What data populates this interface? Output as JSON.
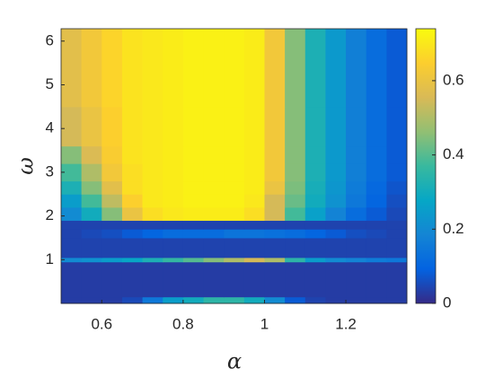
{
  "chart_data": {
    "type": "heatmap",
    "xlabel": "α",
    "ylabel": "ω",
    "x_edges": [
      0.5,
      0.55,
      0.6,
      0.65,
      0.7,
      0.75,
      0.8,
      0.85,
      0.9,
      0.95,
      1.0,
      1.05,
      1.1,
      1.15,
      1.2,
      1.25,
      1.3,
      1.35
    ],
    "y_edges": [
      0,
      0.15,
      0.95,
      1.05,
      1.5,
      1.7,
      1.9,
      2.2,
      2.5,
      2.8,
      3.2,
      3.6,
      4.5,
      6.283
    ],
    "z": [
      [
        0.03,
        0.03,
        0.03,
        0.05,
        0.15,
        0.25,
        0.3,
        0.35,
        0.35,
        0.3,
        0.2,
        0.08,
        0.04,
        0.03,
        0.03,
        0.03,
        0.03
      ],
      [
        0.03,
        0.03,
        0.03,
        0.03,
        0.03,
        0.03,
        0.03,
        0.03,
        0.03,
        0.03,
        0.03,
        0.03,
        0.03,
        0.03,
        0.03,
        0.03,
        0.03
      ],
      [
        0.2,
        0.22,
        0.25,
        0.28,
        0.32,
        0.36,
        0.4,
        0.45,
        0.5,
        0.55,
        0.5,
        0.35,
        0.25,
        0.2,
        0.18,
        0.16,
        0.15
      ],
      [
        0.04,
        0.04,
        0.04,
        0.04,
        0.04,
        0.04,
        0.04,
        0.04,
        0.04,
        0.04,
        0.04,
        0.04,
        0.04,
        0.04,
        0.04,
        0.04,
        0.04
      ],
      [
        0.04,
        0.05,
        0.06,
        0.08,
        0.1,
        0.12,
        0.12,
        0.12,
        0.14,
        0.14,
        0.13,
        0.12,
        0.1,
        0.08,
        0.06,
        0.05,
        0.04
      ],
      [
        0.04,
        0.04,
        0.04,
        0.04,
        0.04,
        0.04,
        0.04,
        0.04,
        0.04,
        0.04,
        0.04,
        0.04,
        0.04,
        0.04,
        0.04,
        0.04,
        0.04
      ],
      [
        0.2,
        0.3,
        0.45,
        0.6,
        0.68,
        0.7,
        0.71,
        0.71,
        0.71,
        0.68,
        0.55,
        0.38,
        0.26,
        0.18,
        0.12,
        0.08,
        0.05
      ],
      [
        0.25,
        0.38,
        0.52,
        0.65,
        0.7,
        0.71,
        0.72,
        0.72,
        0.72,
        0.7,
        0.55,
        0.42,
        0.3,
        0.22,
        0.15,
        0.1,
        0.06
      ],
      [
        0.32,
        0.45,
        0.58,
        0.68,
        0.7,
        0.71,
        0.72,
        0.72,
        0.72,
        0.71,
        0.6,
        0.44,
        0.31,
        0.23,
        0.16,
        0.11,
        0.07
      ],
      [
        0.38,
        0.5,
        0.62,
        0.68,
        0.7,
        0.71,
        0.72,
        0.72,
        0.72,
        0.71,
        0.62,
        0.45,
        0.32,
        0.24,
        0.17,
        0.12,
        0.08
      ],
      [
        0.45,
        0.56,
        0.64,
        0.69,
        0.7,
        0.71,
        0.72,
        0.72,
        0.72,
        0.71,
        0.62,
        0.45,
        0.32,
        0.24,
        0.17,
        0.12,
        0.08
      ],
      [
        0.55,
        0.6,
        0.65,
        0.69,
        0.7,
        0.71,
        0.72,
        0.72,
        0.72,
        0.71,
        0.62,
        0.45,
        0.32,
        0.24,
        0.17,
        0.12,
        0.08
      ],
      [
        0.58,
        0.62,
        0.66,
        0.69,
        0.7,
        0.71,
        0.72,
        0.72,
        0.72,
        0.71,
        0.62,
        0.45,
        0.32,
        0.24,
        0.17,
        0.12,
        0.08
      ]
    ],
    "xlim": [
      0.5,
      1.35
    ],
    "ylim": [
      0,
      6.283
    ],
    "clim": [
      0,
      0.74
    ],
    "xticks": [
      0.6,
      0.8,
      1,
      1.2
    ],
    "yticks": [
      1,
      2,
      3,
      4,
      5,
      6
    ],
    "cticks": [
      0,
      0.2,
      0.4,
      0.6
    ],
    "colormap": [
      "#352a87",
      "#0363e1",
      "#1485d4",
      "#06a7c6",
      "#38b99e",
      "#92bf73",
      "#d9ba56",
      "#fcce2e",
      "#f9fb0e"
    ]
  }
}
